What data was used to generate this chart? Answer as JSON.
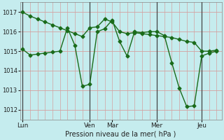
{
  "background_color": "#c5ecee",
  "grid_color_major": "#d4a0a0",
  "grid_color_minor": "#ddbaba",
  "line_color": "#1a6b1a",
  "marker": "D",
  "markersize": 2.5,
  "linewidth": 1.0,
  "xlabel": "Pression niveau de la mer( hPa )",
  "ylim": [
    1011.5,
    1017.5
  ],
  "yticks": [
    1012,
    1013,
    1014,
    1015,
    1016,
    1017
  ],
  "day_labels": [
    "Lun",
    "Ven",
    "Mar",
    "Mer",
    "Jeu"
  ],
  "day_tick_positions": [
    0,
    27,
    36,
    54,
    72
  ],
  "vline_positions": [
    0,
    27,
    54,
    72
  ],
  "total_points": 81,
  "series1_x": [
    0,
    3,
    6,
    9,
    12,
    15,
    18,
    21,
    24,
    27,
    30,
    33,
    36,
    39,
    42,
    45,
    48,
    51,
    54,
    57,
    60,
    63,
    66,
    69,
    72,
    75,
    78
  ],
  "series1_y": [
    1015.1,
    1014.8,
    1014.85,
    1014.9,
    1014.95,
    1015.0,
    1016.2,
    1015.3,
    1013.2,
    1013.3,
    1016.0,
    1016.15,
    1016.6,
    1015.5,
    1014.75,
    1016.0,
    1015.95,
    1016.0,
    1016.0,
    1015.8,
    1014.4,
    1013.1,
    1012.15,
    1012.2,
    1014.75,
    1014.9,
    1015.0
  ],
  "series2_x": [
    0,
    3,
    6,
    9,
    12,
    15,
    18,
    21,
    24,
    27,
    30,
    33,
    36,
    39,
    42,
    45,
    48,
    51,
    54,
    57,
    60,
    63,
    66,
    69,
    72,
    75,
    78
  ],
  "series2_y": [
    1017.0,
    1016.8,
    1016.65,
    1016.5,
    1016.35,
    1016.2,
    1016.05,
    1015.9,
    1015.75,
    1016.2,
    1016.25,
    1016.65,
    1016.5,
    1016.0,
    1015.9,
    1015.95,
    1015.9,
    1015.85,
    1015.8,
    1015.75,
    1015.7,
    1015.6,
    1015.5,
    1015.45,
    1015.0,
    1015.0,
    1015.05
  ]
}
